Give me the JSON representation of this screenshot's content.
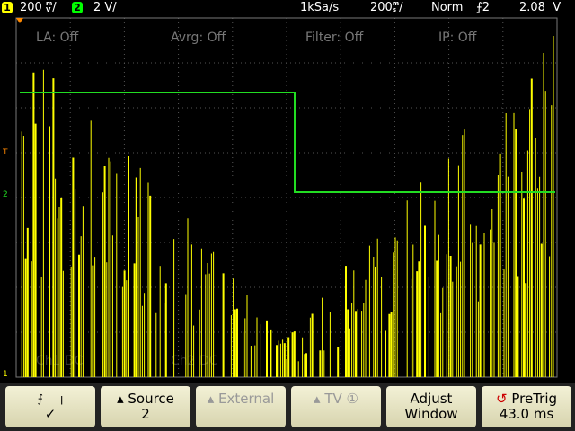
{
  "status_bar": {
    "ch1_label": "1",
    "ch1_scale": "200",
    "ch1_unit_top": "m",
    "ch1_unit_bottom": "V",
    "ch2_label": "2",
    "ch2_scale": "2 V/",
    "sample_rate": "1kSa/s",
    "timebase": "200",
    "time_unit_top": "m",
    "time_unit_bottom": "s",
    "trigger_mode": "Norm",
    "trigger_source": "2",
    "trigger_level": "2.08  V"
  },
  "overlay": [
    "LA: Off",
    "Avrg: Off",
    "Filter: Off",
    "IP: Off"
  ],
  "faint": [
    "Ch1 DC",
    "Ch2 DC"
  ],
  "markers": {
    "trigger": "T",
    "ch2": "2",
    "ch1": "1"
  },
  "softkeys": [
    {
      "label": "✓"
    },
    {
      "label": "Source",
      "value": "2"
    },
    {
      "label": "External"
    },
    {
      "label": "TV"
    },
    {
      "label": "Adjust",
      "value": "Window"
    },
    {
      "label": "PreTrig",
      "value": "43.0 ms"
    }
  ]
}
